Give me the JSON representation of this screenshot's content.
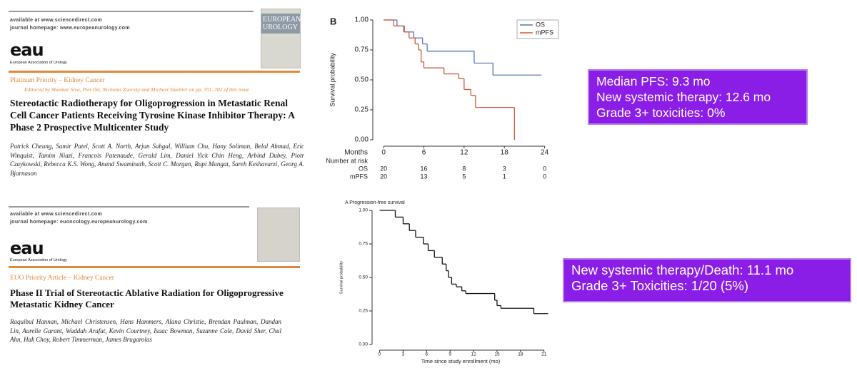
{
  "papers": [
    {
      "available": "available at www.sciencedirect.com",
      "homepage": "journal homepage: www.europeanurology.com",
      "logo": "eau",
      "society": "European Association of Urology",
      "cover": "EUROPEAN UROLOGY",
      "section": "Platinum Priority – Kidney Cancer",
      "editorial": "Editorial by Shankar Siva, Piet Ost, Nicholas Zaorsky and Michael Staehler on pp. 701–702 of this issue",
      "title": "Stereotactic Radiotherapy for Oligoprogression in Metastatic Renal Cell Cancer Patients Receiving Tyrosine Kinase Inhibitor Therapy: A Phase 2 Prospective Multicenter Study",
      "authors": "Patrick Cheung, Samir Patel, Scott A. North, Arjun Sahgal, William Chu, Hany Soliman, Belal Ahmad, Eric Winquist, Tamim Niazi, Francois Patenaude, Gerald Lim, Daniel Yick Chin Heng, Arbind Dubey, Piotr Czaykowski, Rebecca K.S. Wong, Anand Swaminath, Scott C. Morgan, Rupi Mangat, Sareh Keshavarzi, Georg A. Bjarnason"
    },
    {
      "available": "available at www.sciencedirect.com",
      "homepage": "journal homepage: euoncology.europeanurology.com",
      "logo": "eau",
      "society": "European Association of Urology",
      "section": "EUO Priority Article – Kidney Cancer",
      "title": "Phase II Trial of Stereotactic Ablative Radiation for Oligoprogressive Metastatic Kidney Cancer",
      "authors": "Raquibul Hannan, Michael Christensen, Hans Hammers, Alana Christie, Brendan Paulman, Dandan Lin, Aurelie Garant, Waddah Arafat, Kevin Courtney, Isaac Bowman, Suzanne Cole, David Sher, Chul Ahn, Hak Choy, Robert Timmerman, James Brugarolas"
    }
  ],
  "callouts": [
    [
      "Median PFS: 9.3 mo",
      "New systemic therapy: 12.6 mo",
      "Grade 3+ toxicities: 0%"
    ],
    [
      "New systemic therapy/Death: 11.1 mo",
      "Grade 3+ Toxicities: 1/20 (5%)"
    ]
  ],
  "chart_data": [
    {
      "type": "step",
      "panel_label": "B",
      "ylabel": "Survival probability",
      "xlabel": "Months",
      "xlim": [
        -1.5,
        25
      ],
      "xticks": [
        0,
        6,
        12,
        18,
        24
      ],
      "ylim": [
        0,
        1
      ],
      "yticks": [
        {
          "value": 0,
          "label": "0.00"
        },
        {
          "value": 0.25,
          "label": "0.25"
        },
        {
          "value": 0.5,
          "label": "0.50"
        },
        {
          "value": 0.75,
          "label": "0.75"
        },
        {
          "value": 1,
          "label": "1.00"
        }
      ],
      "legend": "upper right",
      "series": [
        {
          "name": "OS",
          "color": "#5677b8",
          "x": [
            0,
            2,
            3,
            4.5,
            5.8,
            6.5,
            13.5,
            16.3,
            23.5
          ],
          "values": [
            1,
            0.95,
            0.9,
            0.85,
            0.8,
            0.74,
            0.64,
            0.54,
            0.54
          ]
        },
        {
          "name": "mPFS",
          "color": "#d2593a",
          "x": [
            0,
            1.5,
            3.1,
            3.8,
            4.7,
            5.2,
            5.6,
            6,
            9,
            11.2,
            12,
            13,
            13.7,
            19.5
          ],
          "values": [
            1,
            0.95,
            0.9,
            0.85,
            0.8,
            0.75,
            0.65,
            0.6,
            0.55,
            0.51,
            0.42,
            0.37,
            0.27,
            0
          ]
        }
      ],
      "risk_table": {
        "title": "Number at risk",
        "rows": [
          {
            "name": "OS",
            "values": [
              20,
              16,
              8,
              3,
              0
            ]
          },
          {
            "name": "mPFS",
            "values": [
              20,
              13,
              5,
              1,
              0
            ]
          }
        ]
      }
    },
    {
      "type": "step",
      "title": "A  Progression-free survival",
      "ylabel": "Survival probability",
      "xlabel": "Time since study enrollment (mo)",
      "xlim": [
        -0.6,
        21.3
      ],
      "xticks": [
        0,
        3,
        6,
        9,
        12,
        15,
        18,
        21
      ],
      "ylim": [
        0,
        1
      ],
      "yticks": [
        {
          "value": 0,
          "label": "0.00"
        },
        {
          "value": 0.25,
          "label": "0.25"
        },
        {
          "value": 0.5,
          "label": "0.50"
        },
        {
          "value": 0.75,
          "label": "0.75"
        },
        {
          "value": 1,
          "label": "1.00"
        }
      ],
      "series": [
        {
          "color": "#111111",
          "x": [
            0,
            2,
            3,
            3.8,
            4.6,
            5.6,
            6.2,
            7,
            8,
            8.5,
            8.8,
            9.2,
            9.8,
            10.5,
            11,
            14.7,
            15,
            15.5,
            19.7,
            21.5
          ],
          "values": [
            1,
            0.95,
            0.9,
            0.85,
            0.8,
            0.75,
            0.7,
            0.65,
            0.6,
            0.55,
            0.5,
            0.45,
            0.43,
            0.4,
            0.38,
            0.33,
            0.29,
            0.27,
            0.23,
            0.23
          ]
        }
      ]
    }
  ]
}
